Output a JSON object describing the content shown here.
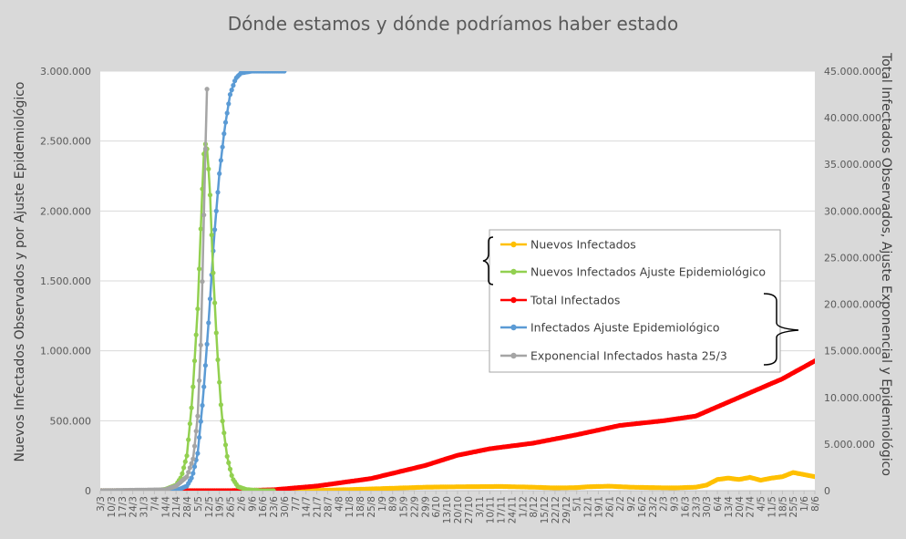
{
  "chart_data": {
    "type": "line",
    "title": "Dónde estamos y dónde podríamos haber estado",
    "ylabel_left": "Nuevos Infectados Observados y por Ajuste Epidemiológico",
    "ylabel_right": "Total Infectados Observados, Ajuste Exponencial y Epidemiológico",
    "ylim_left": [
      0,
      3000000
    ],
    "ylim_right": [
      0,
      45000000
    ],
    "yticks_left": [
      "0",
      "500.000",
      "1.000.000",
      "1.500.000",
      "2.000.000",
      "2.500.000",
      "3.000.000"
    ],
    "yticks_right": [
      "0",
      "5.000.000",
      "10.000.000",
      "15.000.000",
      "20.000.000",
      "25.000.000",
      "30.000.000",
      "35.000.000",
      "40.000.000",
      "45.000.000"
    ],
    "x_categories": [
      "3/3",
      "10/3",
      "17/3",
      "24/3",
      "31/3",
      "7/4",
      "14/4",
      "21/4",
      "28/4",
      "5/5",
      "12/5",
      "19/5",
      "26/5",
      "2/6",
      "9/6",
      "16/6",
      "23/6",
      "30/6",
      "7/7",
      "14/7",
      "21/7",
      "28/7",
      "4/8",
      "11/8",
      "18/8",
      "25/8",
      "1/9",
      "8/9",
      "15/9",
      "22/9",
      "29/9",
      "6/10",
      "13/10",
      "20/10",
      "27/10",
      "3/11",
      "10/11",
      "17/11",
      "24/11",
      "1/12",
      "8/12",
      "15/12",
      "22/12",
      "29/12",
      "5/1",
      "12/1",
      "19/1",
      "26/1",
      "2/2",
      "9/2",
      "16/2",
      "23/2",
      "2/3",
      "9/3",
      "16/3",
      "23/3",
      "30/3",
      "6/4",
      "13/4",
      "20/4",
      "27/4",
      "4/5",
      "11/5",
      "18/5",
      "25/5",
      "1/6",
      "8/6"
    ],
    "grid": true,
    "legend_position": "center-right",
    "legend_groups": [
      [
        "Nuevos Infectados",
        "Nuevos Infectados Ajuste Epidemiológico"
      ],
      [
        "Total Infectados",
        "Infectados Ajuste Epidemiológico",
        "Exponencial Infectados hasta 25/3"
      ]
    ],
    "series": [
      {
        "name": "Nuevos Infectados",
        "axis": "left",
        "color": "#ffc000",
        "points": [
          [
            0,
            0
          ],
          [
            10,
            0
          ],
          [
            17,
            0
          ],
          [
            20,
            2000
          ],
          [
            23,
            8000
          ],
          [
            26,
            15000
          ],
          [
            30,
            25000
          ],
          [
            33,
            28000
          ],
          [
            37,
            30000
          ],
          [
            40,
            25000
          ],
          [
            42,
            20000
          ],
          [
            44,
            22000
          ],
          [
            45,
            28000
          ],
          [
            47,
            32000
          ],
          [
            49,
            25000
          ],
          [
            51,
            22000
          ],
          [
            53,
            20000
          ],
          [
            55,
            25000
          ],
          [
            56,
            40000
          ],
          [
            57,
            80000
          ],
          [
            58,
            90000
          ],
          [
            59,
            80000
          ],
          [
            60,
            95000
          ],
          [
            61,
            75000
          ],
          [
            62,
            90000
          ],
          [
            63,
            100000
          ],
          [
            64,
            130000
          ],
          [
            65,
            115000
          ],
          [
            66,
            100000
          ],
          [
            66.6,
            110000
          ]
        ]
      },
      {
        "name": "Nuevos Infectados Ajuste Epidemiológico",
        "axis": "left",
        "color": "#92d050",
        "points": [
          [
            0,
            0
          ],
          [
            5,
            0
          ],
          [
            6,
            10000
          ],
          [
            7,
            40000
          ],
          [
            7.5,
            100000
          ],
          [
            8,
            250000
          ],
          [
            8.5,
            650000
          ],
          [
            9,
            1300000
          ],
          [
            9.3,
            1900000
          ],
          [
            9.5,
            2300000
          ],
          [
            9.6,
            2450000
          ],
          [
            9.8,
            2500000
          ],
          [
            10.1,
            2200000
          ],
          [
            10.4,
            1600000
          ],
          [
            10.8,
            1000000
          ],
          [
            11.2,
            550000
          ],
          [
            11.7,
            250000
          ],
          [
            12.2,
            90000
          ],
          [
            12.7,
            30000
          ],
          [
            13.5,
            8000
          ],
          [
            15,
            0
          ],
          [
            16,
            0
          ]
        ]
      },
      {
        "name": "Total Infectados",
        "axis": "right",
        "color": "#ff0000",
        "points": [
          [
            0,
            0
          ],
          [
            12,
            0
          ],
          [
            16,
            100000
          ],
          [
            20,
            500000
          ],
          [
            25,
            1300000
          ],
          [
            30,
            2700000
          ],
          [
            33,
            3800000
          ],
          [
            36,
            4500000
          ],
          [
            40,
            5100000
          ],
          [
            44,
            6000000
          ],
          [
            48,
            7000000
          ],
          [
            52,
            7500000
          ],
          [
            55,
            8000000
          ],
          [
            57,
            9000000
          ],
          [
            60,
            10500000
          ],
          [
            63,
            12000000
          ],
          [
            66.6,
            14300000
          ]
        ]
      },
      {
        "name": "Infectados Ajuste Epidemiológico",
        "axis": "right",
        "color": "#5b9bd5",
        "points": [
          [
            0,
            0
          ],
          [
            7,
            0
          ],
          [
            8,
            500000
          ],
          [
            8.5,
            1500000
          ],
          [
            9,
            4000000
          ],
          [
            9.5,
            10000000
          ],
          [
            10,
            18000000
          ],
          [
            10.5,
            27000000
          ],
          [
            11,
            34000000
          ],
          [
            11.5,
            39000000
          ],
          [
            12,
            42500000
          ],
          [
            12.5,
            44200000
          ],
          [
            13,
            44800000
          ],
          [
            14,
            45000000
          ],
          [
            17,
            45000000
          ]
        ]
      },
      {
        "name": "Exponencial Infectados hasta 25/3",
        "axis": "right",
        "color": "#a5a5a5",
        "points": [
          [
            0,
            0
          ],
          [
            6,
            100000
          ],
          [
            7,
            500000
          ],
          [
            8,
            1500000
          ],
          [
            8.6,
            3500000
          ],
          [
            9,
            8000000
          ],
          [
            9.3,
            16000000
          ],
          [
            9.5,
            26000000
          ],
          [
            9.7,
            36000000
          ],
          [
            9.9,
            45000000
          ]
        ]
      }
    ]
  }
}
